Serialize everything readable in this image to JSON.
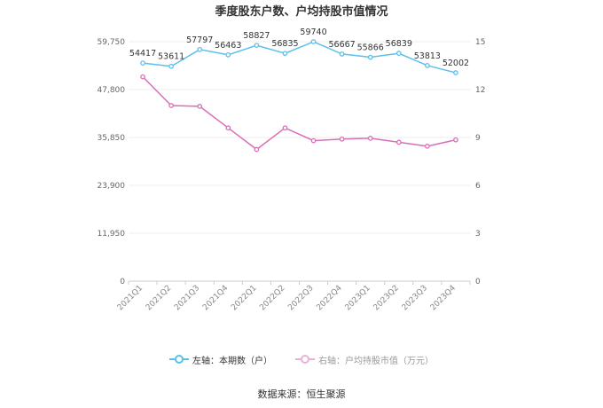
{
  "chart_data": {
    "type": "line",
    "title": "季度股东户数、户均持股市值情况",
    "categories": [
      "2021Q1",
      "2021Q2",
      "2021Q3",
      "2021Q4",
      "2022Q1",
      "2022Q2",
      "2022Q3",
      "2022Q4",
      "2023Q1",
      "2023Q2",
      "2023Q3",
      "2023Q4"
    ],
    "left_axis": {
      "ticks": [
        "0",
        "11,950",
        "23,900",
        "35,850",
        "47,800",
        "59,750"
      ],
      "ylim": [
        0,
        59750
      ]
    },
    "right_axis": {
      "ticks": [
        "0",
        "3",
        "6",
        "9",
        "12",
        "15"
      ],
      "ylim": [
        0,
        15
      ]
    },
    "series": [
      {
        "name": "左轴：本期数（户）",
        "axis": "left",
        "color": "#5bc0eb",
        "values": [
          54417,
          53611,
          57797,
          56463,
          58827,
          56835,
          59740,
          56667,
          55866,
          56839,
          53813,
          52002
        ],
        "show_labels": true
      },
      {
        "name": "右轴：户均持股市值（万元）",
        "axis": "right",
        "color": "#d86fb7",
        "values": [
          12.8,
          11.0,
          10.95,
          9.6,
          8.25,
          9.6,
          8.8,
          8.9,
          8.95,
          8.7,
          8.45,
          8.85
        ],
        "show_labels": false
      }
    ],
    "grid": true,
    "legend_position": "bottom"
  },
  "source": "数据来源：恒生聚源"
}
